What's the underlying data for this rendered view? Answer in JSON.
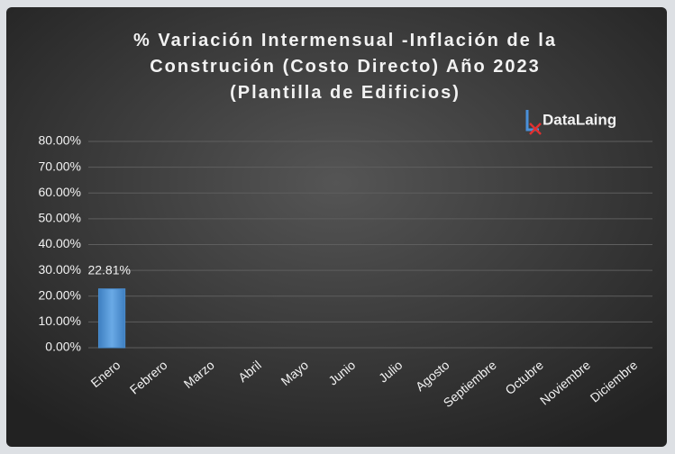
{
  "chart_data": {
    "type": "bar",
    "title": "% Variación Intermensual -Inflación de la Construción (Costo Directo) Año 2023 (Plantilla de Edificios)",
    "logo": "DataLaing",
    "categories": [
      "Enero",
      "Febrero",
      "Marzo",
      "Abril",
      "Mayo",
      "Junio",
      "Julio",
      "Agosto",
      "Septiembre",
      "Octubre",
      "Noviembre",
      "Diciembre"
    ],
    "values": [
      22.81,
      null,
      null,
      null,
      null,
      null,
      null,
      null,
      null,
      null,
      null,
      null
    ],
    "value_labels": [
      "22.81%",
      null,
      null,
      null,
      null,
      null,
      null,
      null,
      null,
      null,
      null,
      null
    ],
    "color": "#5b9bd5",
    "ylim": [
      0,
      80
    ],
    "yticks": [
      {
        "value": 0,
        "label": "0.00%"
      },
      {
        "value": 10,
        "label": "10.00%"
      },
      {
        "value": 20,
        "label": "20.00%"
      },
      {
        "value": 30,
        "label": "30.00%"
      },
      {
        "value": 40,
        "label": "40.00%"
      },
      {
        "value": 50,
        "label": "50.00%"
      },
      {
        "value": 60,
        "label": "60.00%"
      },
      {
        "value": 70,
        "label": "70.00%"
      },
      {
        "value": 80,
        "label": "80.00%"
      }
    ],
    "grid": true
  }
}
